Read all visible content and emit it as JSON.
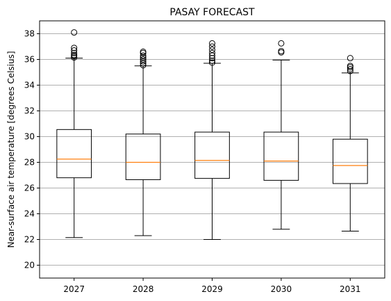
{
  "chart_data": {
    "type": "boxplot",
    "title": "PASAY FORECAST",
    "xlabel": "",
    "ylabel": "Near-surface air temperature [degrees Celsius]",
    "ylim": [
      19,
      39
    ],
    "yticks": [
      20,
      22,
      24,
      26,
      28,
      30,
      32,
      34,
      36,
      38
    ],
    "grid": "y",
    "categories": [
      "2027",
      "2028",
      "2029",
      "2030",
      "2031"
    ],
    "boxes": [
      {
        "label": "2027",
        "whisker_low": 22.15,
        "q1": 26.8,
        "median": 28.25,
        "q3": 30.55,
        "whisker_high": 36.1,
        "outliers": [
          36.15,
          36.25,
          36.35,
          36.5,
          36.7,
          36.9,
          38.1
        ]
      },
      {
        "label": "2028",
        "whisker_low": 22.3,
        "q1": 26.65,
        "median": 28.0,
        "q3": 30.2,
        "whisker_high": 35.5,
        "outliers": [
          35.55,
          35.7,
          35.85,
          36.0,
          36.15,
          36.3,
          36.5,
          36.6
        ]
      },
      {
        "label": "2029",
        "whisker_low": 22.0,
        "q1": 26.75,
        "median": 28.15,
        "q3": 30.35,
        "whisker_high": 35.7,
        "outliers": [
          35.75,
          35.9,
          36.1,
          36.3,
          36.5,
          36.75,
          37.0,
          37.25
        ]
      },
      {
        "label": "2030",
        "whisker_low": 22.8,
        "q1": 26.6,
        "median": 28.1,
        "q3": 30.35,
        "whisker_high": 35.95,
        "outliers": [
          36.55,
          36.65,
          37.25
        ]
      },
      {
        "label": "2031",
        "whisker_low": 22.65,
        "q1": 26.35,
        "median": 27.75,
        "q3": 29.8,
        "whisker_high": 34.95,
        "outliers": [
          35.1,
          35.25,
          35.4,
          35.5,
          36.1
        ]
      }
    ],
    "colors": {
      "box": "#000000",
      "median": "#ff7f0e",
      "grid": "#b0b0b0",
      "outlier": "#000000"
    }
  }
}
